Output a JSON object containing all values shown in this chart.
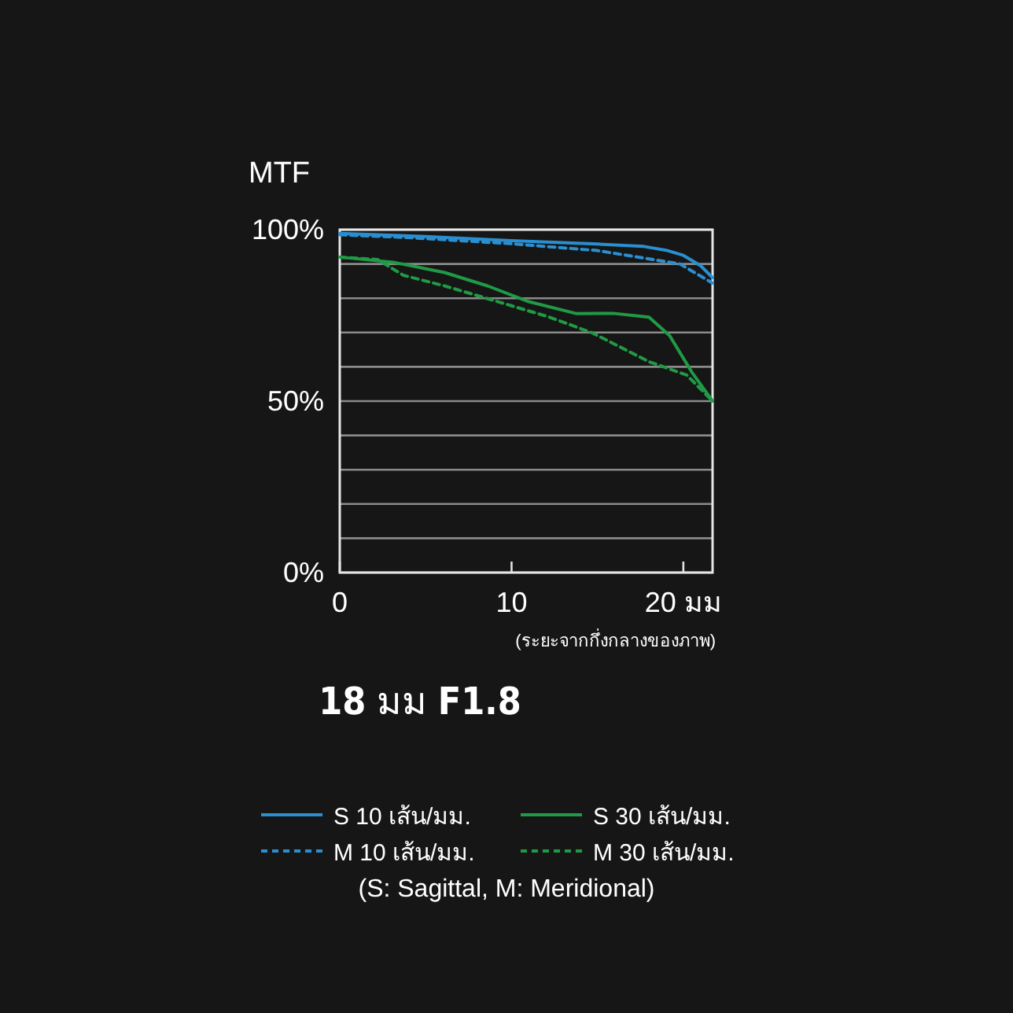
{
  "chart_data": {
    "type": "line",
    "title": "**18** มม **F1.8**",
    "ylabel": "MTF",
    "xlabel": "(ระยะจากกึ่งกลางของภาพ)",
    "annotations": [
      "(S: Sagittal, M: Meridional)"
    ],
    "xlim": [
      0,
      21.7
    ],
    "ylim": [
      0,
      100
    ],
    "xticks": [
      0,
      10,
      {
        "value": 20,
        "label": "20 มม"
      }
    ],
    "yticks": [
      {
        "value": 0,
        "label": "0%"
      },
      {
        "value": 10,
        "label": null
      },
      {
        "value": 20,
        "label": null
      },
      {
        "value": 30,
        "label": null
      },
      {
        "value": 40,
        "label": null
      },
      {
        "value": 50,
        "label": "50%"
      },
      {
        "value": 60,
        "label": null
      },
      {
        "value": 70,
        "label": null
      },
      {
        "value": 80,
        "label": null
      },
      {
        "value": 90,
        "label": null
      },
      {
        "value": 100,
        "label": "100%"
      }
    ],
    "grid": "y",
    "legend": "bottom",
    "series": [
      {
        "name": "S 10 เส้น/มม.",
        "color": "#2a8fd0",
        "line_style": "solid",
        "x": [
          0,
          5,
          10,
          15,
          17.7,
          19,
          20,
          21,
          21.7
        ],
        "values": [
          98.9,
          98,
          96.8,
          95.8,
          95.1,
          94,
          92.5,
          89.5,
          86
        ]
      },
      {
        "name": "M 10 เส้น/มม.",
        "color": "#2a8fd0",
        "line_style": "dashed",
        "x": [
          0,
          4,
          10,
          15,
          19.8,
          21.7
        ],
        "values": [
          98.5,
          97.7,
          95.9,
          93.9,
          90,
          84.4
        ]
      },
      {
        "name": "S 30 เส้น/มม.",
        "color": "#1f9a45",
        "line_style": "solid",
        "x": [
          0,
          3.1,
          6.1,
          8.6,
          11,
          13.8,
          15.9,
          18,
          19.2,
          20.5,
          21.7
        ],
        "values": [
          92,
          90.5,
          87.5,
          83.6,
          79,
          75.5,
          75.6,
          74.5,
          69.1,
          58.4,
          50
        ]
      },
      {
        "name": "M 30 เส้น/มม.",
        "color": "#1f9a45",
        "line_style": "dashed",
        "x": [
          0,
          2.2,
          3.7,
          6.1,
          9.2,
          12.2,
          14.7,
          18,
          20.2,
          21.7
        ],
        "values": [
          92,
          91.3,
          86.7,
          83.6,
          79,
          74.5,
          69.9,
          61.5,
          57.6,
          50
        ]
      }
    ]
  }
}
